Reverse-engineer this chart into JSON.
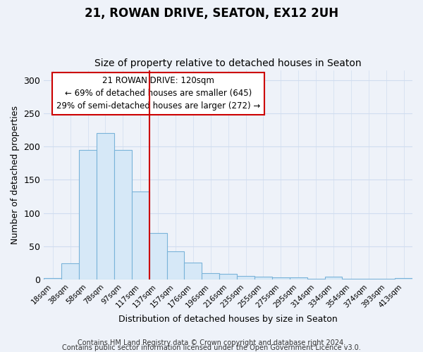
{
  "title": "21, ROWAN DRIVE, SEATON, EX12 2UH",
  "subtitle": "Size of property relative to detached houses in Seaton",
  "xlabel": "Distribution of detached houses by size in Seaton",
  "ylabel": "Number of detached properties",
  "bar_labels": [
    "18sqm",
    "38sqm",
    "58sqm",
    "78sqm",
    "97sqm",
    "117sqm",
    "137sqm",
    "157sqm",
    "176sqm",
    "196sqm",
    "216sqm",
    "235sqm",
    "255sqm",
    "275sqm",
    "295sqm",
    "314sqm",
    "334sqm",
    "354sqm",
    "374sqm",
    "393sqm",
    "413sqm"
  ],
  "bar_values": [
    2,
    24,
    195,
    220,
    195,
    132,
    70,
    42,
    25,
    10,
    8,
    5,
    4,
    3,
    3,
    1,
    4,
    1,
    1,
    1,
    2
  ],
  "bar_color": "#d6e8f7",
  "bar_edge_color": "#7ab3d9",
  "red_line_index": 5,
  "red_line_color": "#cc0000",
  "annotation_text": "21 ROWAN DRIVE: 120sqm\n← 69% of detached houses are smaller (645)\n29% of semi-detached houses are larger (272) →",
  "annotation_box_color": "white",
  "annotation_box_edge_color": "#cc0000",
  "ylim": [
    0,
    315
  ],
  "yticks": [
    0,
    50,
    100,
    150,
    200,
    250,
    300
  ],
  "footer_line1": "Contains HM Land Registry data © Crown copyright and database right 2024.",
  "footer_line2": "Contains public sector information licensed under the Open Government Licence v3.0.",
  "bg_color": "#eef2f9",
  "grid_color": "#d0ddf0",
  "title_fontsize": 12,
  "subtitle_fontsize": 10,
  "footer_fontsize": 7
}
